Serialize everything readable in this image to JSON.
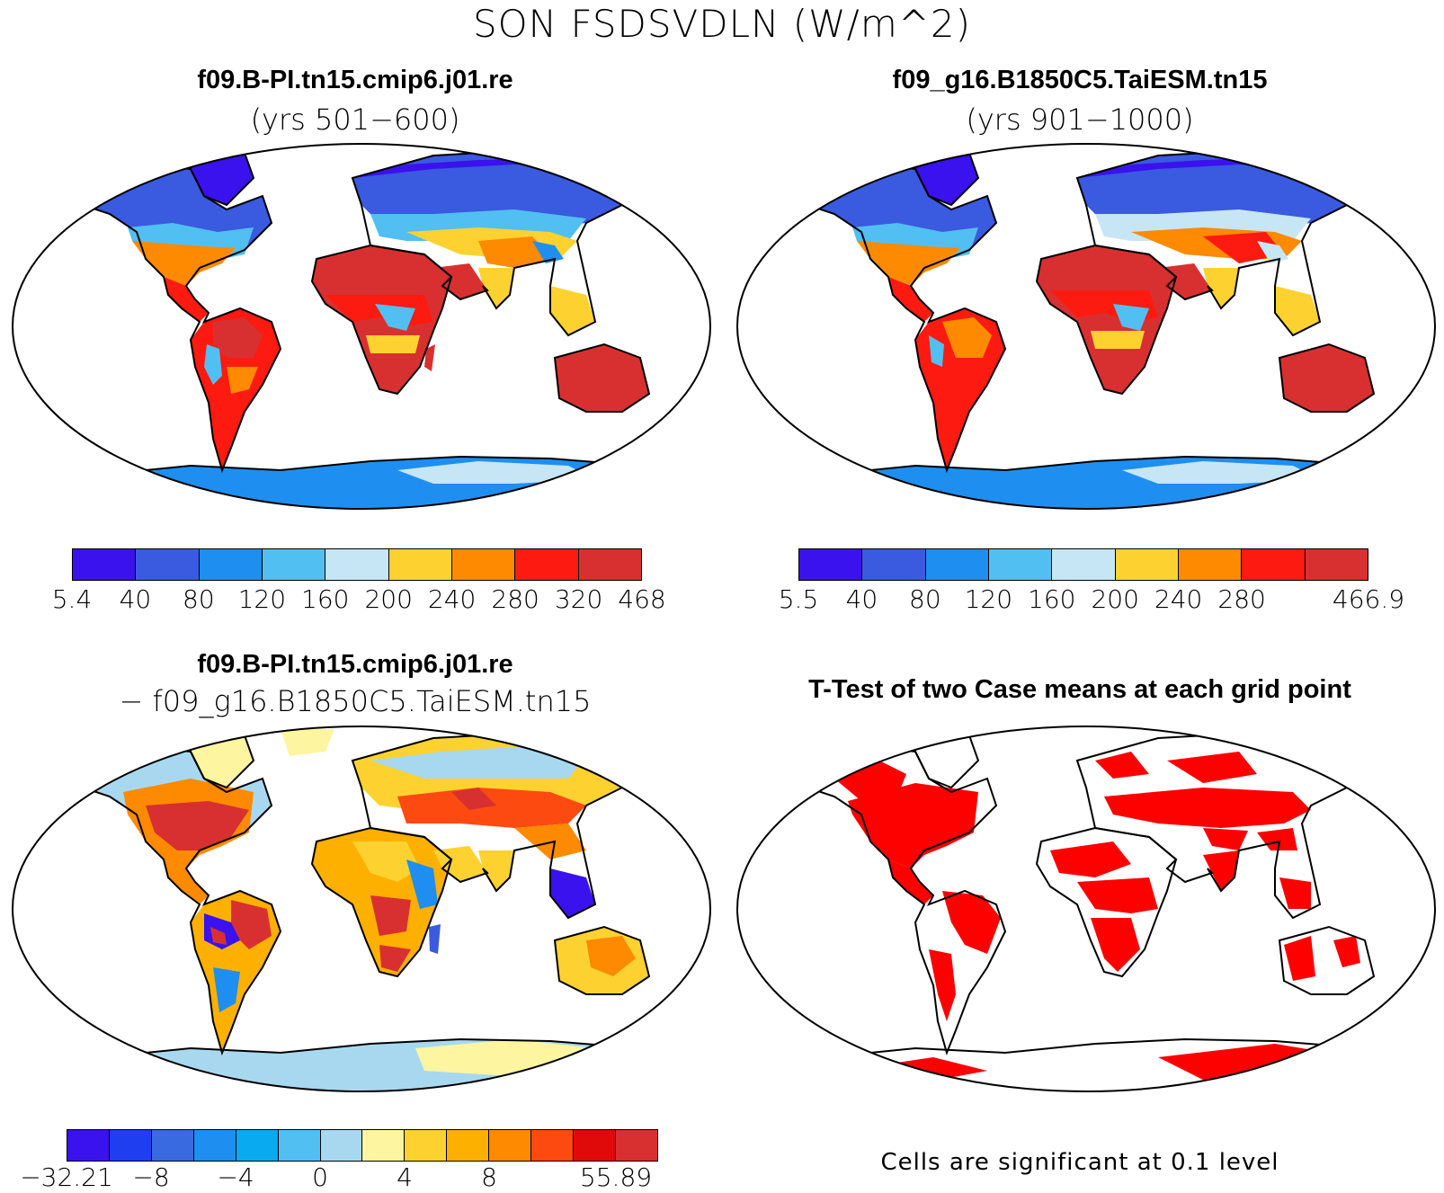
{
  "main_title": "SON FSDSVDLN (W/m^2)",
  "panels": [
    {
      "title": "f09.B-PI.tn15.cmip6.j01.re",
      "subtitle": "(yrs 501−600)",
      "colorbar": {
        "colors": [
          "#3a12ee",
          "#3a5ae0",
          "#1e8ff0",
          "#52bff2",
          "#c6e6f6",
          "#fdd230",
          "#fd8a00",
          "#fd1a10",
          "#d83030"
        ],
        "labels": [
          "5.4",
          "40",
          "80",
          "120",
          "160",
          "200",
          "240",
          "280",
          "320",
          "468"
        ]
      }
    },
    {
      "title": "f09_g16.B1850C5.TaiESM.tn15",
      "subtitle": "(yrs 901−1000)",
      "colorbar": {
        "colors": [
          "#3a12ee",
          "#3a5ae0",
          "#1e8ff0",
          "#52bff2",
          "#c6e6f6",
          "#fdd230",
          "#fd8a00",
          "#fd1a10",
          "#d83030"
        ],
        "labels": [
          "5.5",
          "40",
          "80",
          "120",
          "160",
          "200",
          "240",
          "280",
          "",
          "466.9"
        ]
      }
    },
    {
      "title": "f09.B-PI.tn15.cmip6.j01.re",
      "subtitle": "− f09_g16.B1850C5.TaiESM.tn15",
      "colorbar": {
        "colors": [
          "#3a12ee",
          "#1e3ef0",
          "#3a6ae0",
          "#1e8ff0",
          "#0aaaf0",
          "#52bff2",
          "#a8d8f0",
          "#fdf5a0",
          "#fdd230",
          "#fdb000",
          "#fd8a00",
          "#fd4a10",
          "#e00a0a",
          "#d83030"
        ],
        "labels": [
          "−32.21",
          "",
          "−8",
          "",
          "−4",
          "",
          "0",
          "",
          "4",
          "",
          "8",
          "",
          "",
          "55.89"
        ]
      }
    },
    {
      "title": "T-Test of two Case means at each grid point",
      "note": "Cells are significant at 0.1 level"
    }
  ],
  "colors": {
    "significant": "#fd0000",
    "coast": "#000000"
  }
}
